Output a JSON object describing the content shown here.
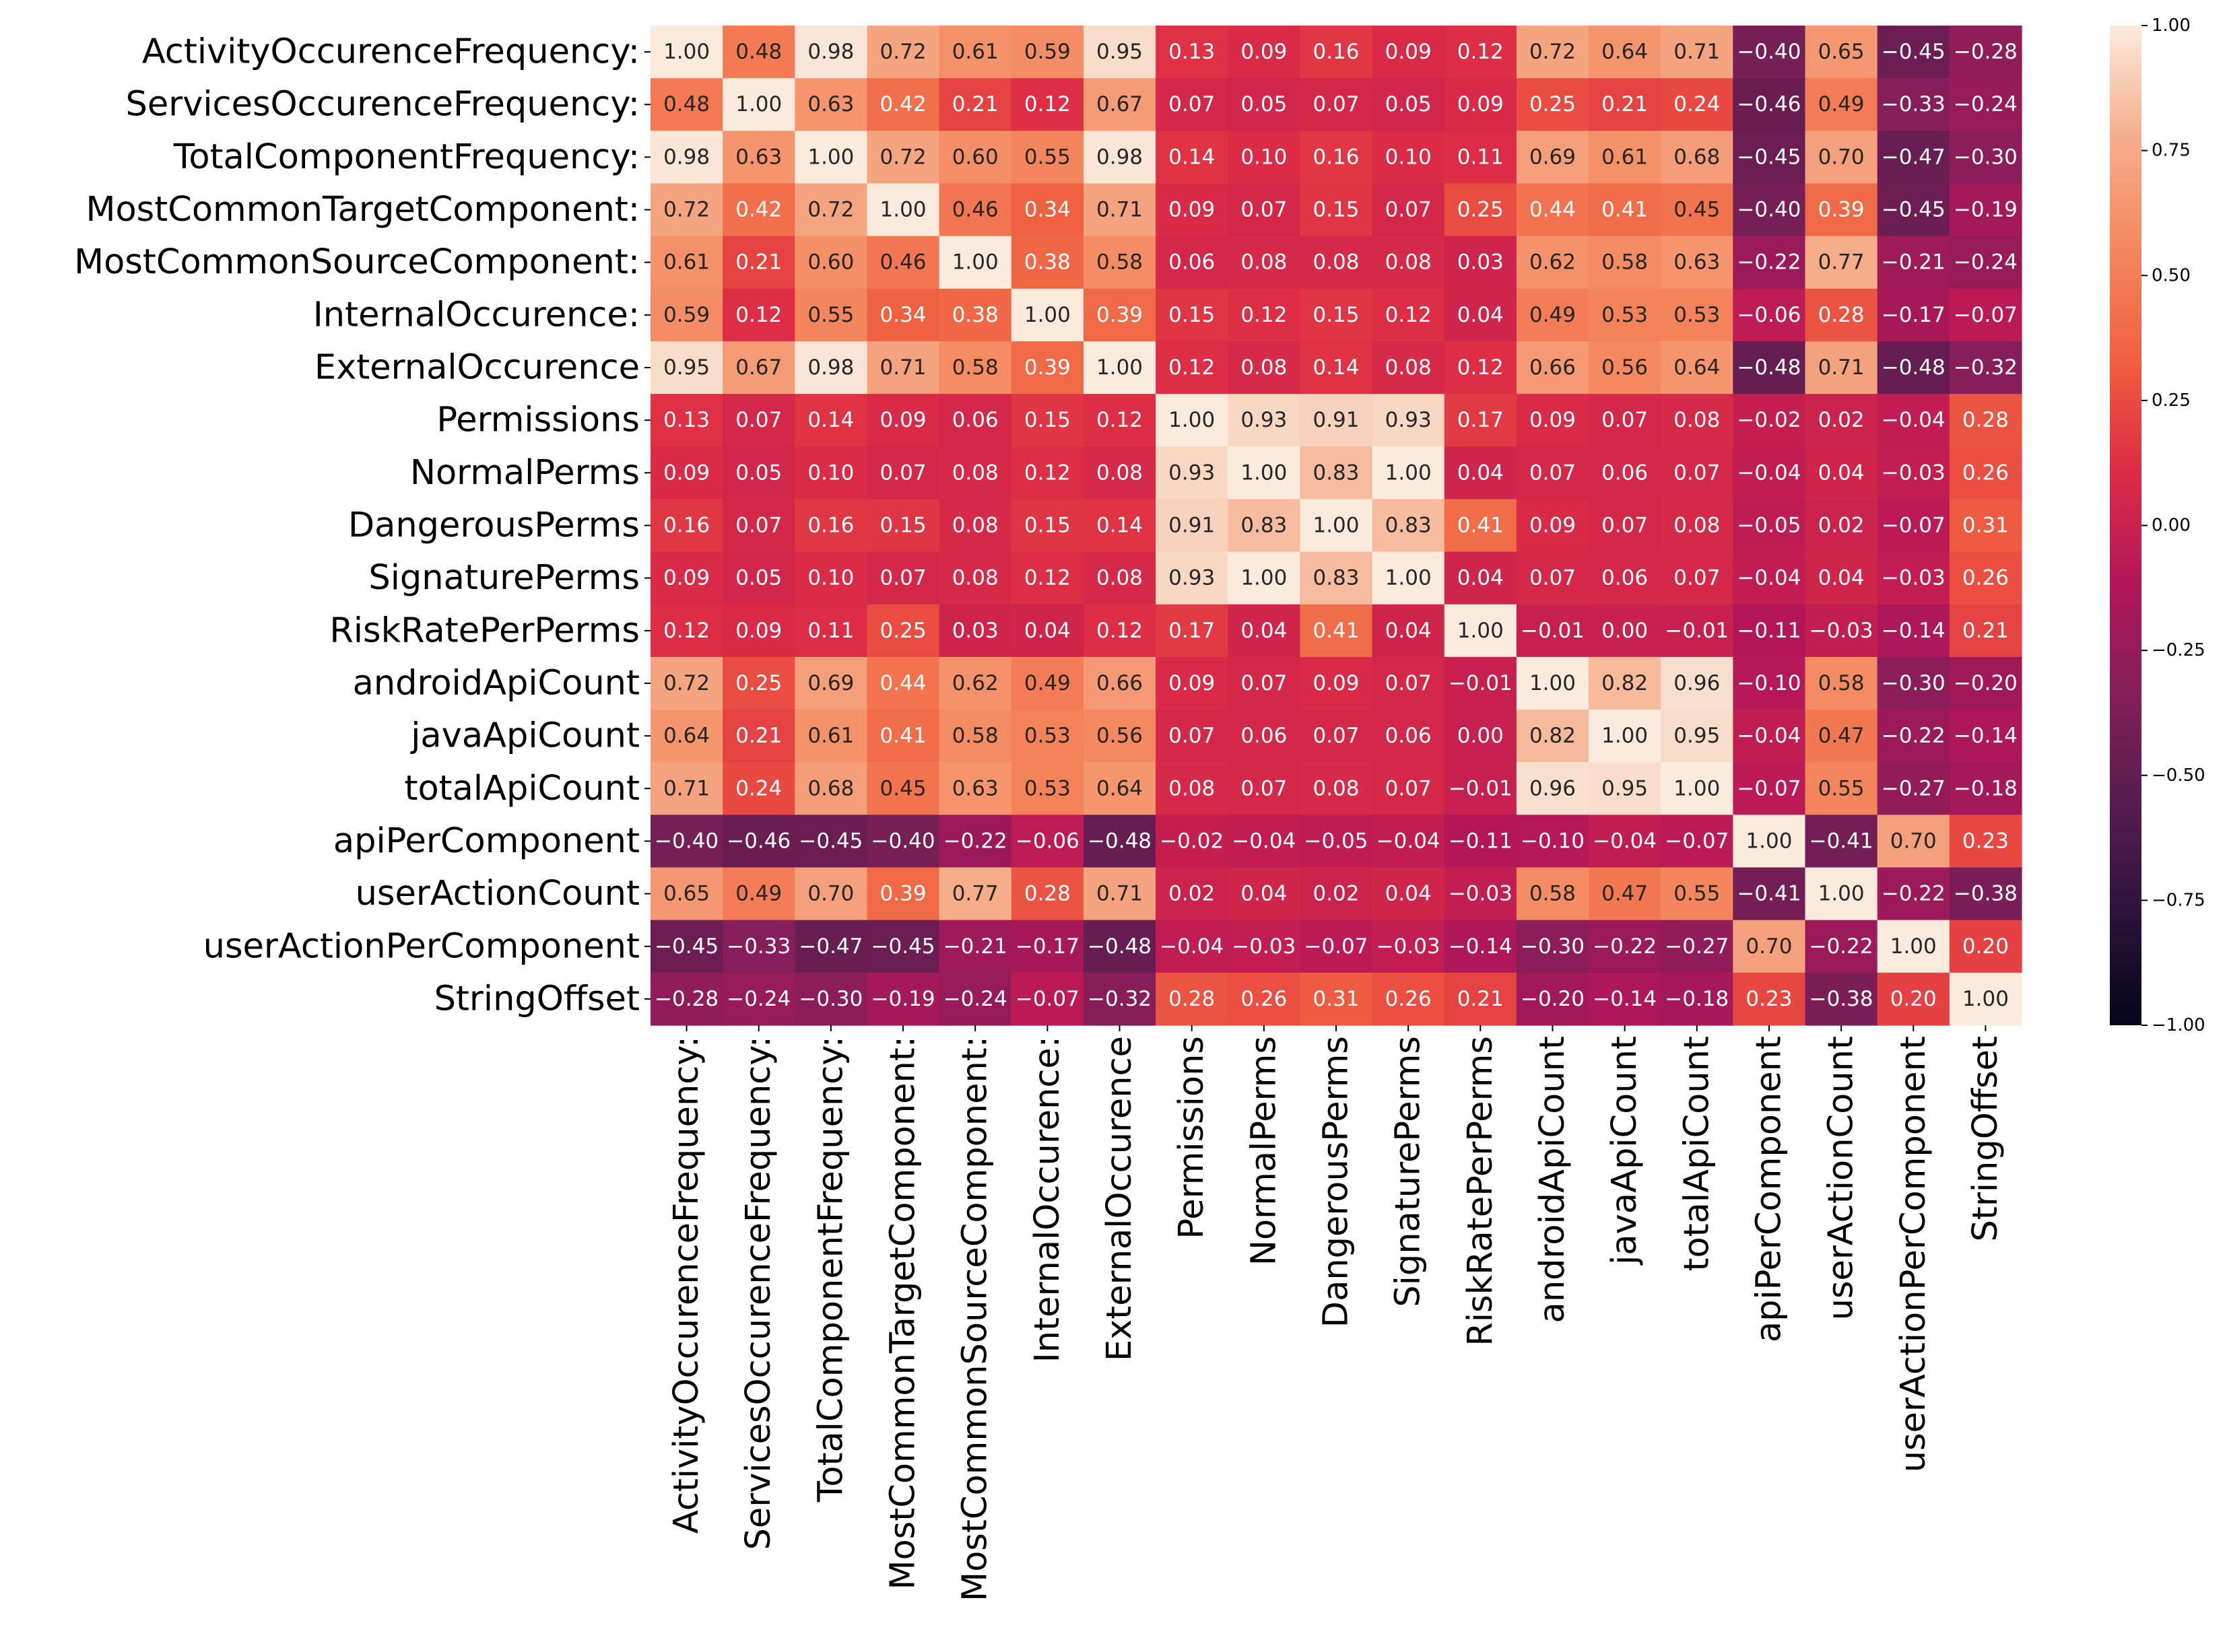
{
  "chart_data": {
    "type": "heatmap",
    "title": "",
    "xlabel": "",
    "ylabel": "",
    "row_labels": [
      "ActivityOccurenceFrequency:",
      "ServicesOccurenceFrequency:",
      "TotalComponentFrequency: ",
      "MostCommonTargetComponent: ",
      "MostCommonSourceComponent: ",
      "InternalOccurence:",
      "ExternalOccurence",
      "Permissions",
      "NormalPerms",
      "DangerousPerms",
      "SignaturePerms",
      "RiskRatePerPerms",
      "androidApiCount",
      "javaApiCount",
      "totalApiCount",
      "apiPerComponent",
      "userActionCount",
      "userActionPerComponent",
      "StringOffset"
    ],
    "col_labels": [
      "ActivityOccurenceFrequency:",
      "ServicesOccurenceFrequency:",
      "TotalComponentFrequency: ",
      "MostCommonTargetComponent: ",
      "MostCommonSourceComponent: ",
      "InternalOccurence:",
      "ExternalOccurence",
      "Permissions",
      "NormalPerms",
      "DangerousPerms",
      "SignaturePerms",
      "RiskRatePerPerms",
      "androidApiCount",
      "javaApiCount",
      "totalApiCount",
      "apiPerComponent",
      "userActionCount",
      "userActionPerComponent",
      "StringOffset"
    ],
    "values": [
      [
        1.0,
        0.48,
        0.98,
        0.72,
        0.61,
        0.59,
        0.95,
        0.13,
        0.09,
        0.16,
        0.09,
        0.12,
        0.72,
        0.64,
        0.71,
        -0.4,
        0.65,
        -0.45,
        -0.28
      ],
      [
        0.48,
        1.0,
        0.63,
        0.42,
        0.21,
        0.12,
        0.67,
        0.07,
        0.05,
        0.07,
        0.05,
        0.09,
        0.25,
        0.21,
        0.24,
        -0.46,
        0.49,
        -0.33,
        -0.24
      ],
      [
        0.98,
        0.63,
        1.0,
        0.72,
        0.6,
        0.55,
        0.98,
        0.14,
        0.1,
        0.16,
        0.1,
        0.11,
        0.69,
        0.61,
        0.68,
        -0.45,
        0.7,
        -0.47,
        -0.3
      ],
      [
        0.72,
        0.42,
        0.72,
        1.0,
        0.46,
        0.34,
        0.71,
        0.09,
        0.07,
        0.15,
        0.07,
        0.25,
        0.44,
        0.41,
        0.45,
        -0.4,
        0.39,
        -0.45,
        -0.19
      ],
      [
        0.61,
        0.21,
        0.6,
        0.46,
        1.0,
        0.38,
        0.58,
        0.06,
        0.08,
        0.08,
        0.08,
        0.03,
        0.62,
        0.58,
        0.63,
        -0.22,
        0.77,
        -0.21,
        -0.24
      ],
      [
        0.59,
        0.12,
        0.55,
        0.34,
        0.38,
        1.0,
        0.39,
        0.15,
        0.12,
        0.15,
        0.12,
        0.04,
        0.49,
        0.53,
        0.53,
        -0.06,
        0.28,
        -0.17,
        -0.07
      ],
      [
        0.95,
        0.67,
        0.98,
        0.71,
        0.58,
        0.39,
        1.0,
        0.12,
        0.08,
        0.14,
        0.08,
        0.12,
        0.66,
        0.56,
        0.64,
        -0.48,
        0.71,
        -0.48,
        -0.32
      ],
      [
        0.13,
        0.07,
        0.14,
        0.09,
        0.06,
        0.15,
        0.12,
        1.0,
        0.93,
        0.91,
        0.93,
        0.17,
        0.09,
        0.07,
        0.08,
        -0.02,
        0.02,
        -0.04,
        0.28
      ],
      [
        0.09,
        0.05,
        0.1,
        0.07,
        0.08,
        0.12,
        0.08,
        0.93,
        1.0,
        0.83,
        1.0,
        0.04,
        0.07,
        0.06,
        0.07,
        -0.04,
        0.04,
        -0.03,
        0.26
      ],
      [
        0.16,
        0.07,
        0.16,
        0.15,
        0.08,
        0.15,
        0.14,
        0.91,
        0.83,
        1.0,
        0.83,
        0.41,
        0.09,
        0.07,
        0.08,
        -0.05,
        0.02,
        -0.07,
        0.31
      ],
      [
        0.09,
        0.05,
        0.1,
        0.07,
        0.08,
        0.12,
        0.08,
        0.93,
        1.0,
        0.83,
        1.0,
        0.04,
        0.07,
        0.06,
        0.07,
        -0.04,
        0.04,
        -0.03,
        0.26
      ],
      [
        0.12,
        0.09,
        0.11,
        0.25,
        0.03,
        0.04,
        0.12,
        0.17,
        0.04,
        0.41,
        0.04,
        1.0,
        -0.01,
        -0.0,
        -0.01,
        -0.11,
        -0.03,
        -0.14,
        0.21
      ],
      [
        0.72,
        0.25,
        0.69,
        0.44,
        0.62,
        0.49,
        0.66,
        0.09,
        0.07,
        0.09,
        0.07,
        -0.01,
        1.0,
        0.82,
        0.96,
        -0.1,
        0.58,
        -0.3,
        -0.2
      ],
      [
        0.64,
        0.21,
        0.61,
        0.41,
        0.58,
        0.53,
        0.56,
        0.07,
        0.06,
        0.07,
        0.06,
        -0.0,
        0.82,
        1.0,
        0.95,
        -0.04,
        0.47,
        -0.22,
        -0.14
      ],
      [
        0.71,
        0.24,
        0.68,
        0.45,
        0.63,
        0.53,
        0.64,
        0.08,
        0.07,
        0.08,
        0.07,
        -0.01,
        0.96,
        0.95,
        1.0,
        -0.07,
        0.55,
        -0.27,
        -0.18
      ],
      [
        -0.4,
        -0.46,
        -0.45,
        -0.4,
        -0.22,
        -0.06,
        -0.48,
        -0.02,
        -0.04,
        -0.05,
        -0.04,
        -0.11,
        -0.1,
        -0.04,
        -0.07,
        1.0,
        -0.41,
        0.7,
        0.23
      ],
      [
        0.65,
        0.49,
        0.7,
        0.39,
        0.77,
        0.28,
        0.71,
        0.02,
        0.04,
        0.02,
        0.04,
        -0.03,
        0.58,
        0.47,
        0.55,
        -0.41,
        1.0,
        -0.22,
        -0.38
      ],
      [
        -0.45,
        -0.33,
        -0.47,
        -0.45,
        -0.21,
        -0.17,
        -0.48,
        -0.04,
        -0.03,
        -0.07,
        -0.03,
        -0.14,
        -0.3,
        -0.22,
        -0.27,
        0.7,
        -0.22,
        1.0,
        0.2
      ],
      [
        -0.28,
        -0.24,
        -0.3,
        -0.19,
        -0.24,
        -0.07,
        -0.32,
        0.28,
        0.26,
        0.31,
        0.26,
        0.21,
        -0.2,
        -0.14,
        -0.18,
        0.23,
        -0.38,
        0.2,
        1.0
      ]
    ],
    "value_format": "2 decimals, minus sign rendered as −",
    "vmin": -1.0,
    "vmax": 1.0,
    "colormap": "rocket",
    "colorbar_ticks": [
      1.0,
      0.75,
      0.5,
      0.25,
      0.0,
      -0.25,
      -0.5,
      -0.75,
      -1.0
    ],
    "colorbar_tick_labels": [
      "1.00",
      "0.75",
      "0.50",
      "0.25",
      "0.00",
      "−0.25",
      "−0.50",
      "−0.75",
      "−1.00"
    ],
    "colormap_stops": [
      "#03051a",
      "#2b1339",
      "#571d4e",
      "#841e5a",
      "#b41658",
      "#dd2c45",
      "#f0603f",
      "#f4875e",
      "#f6ae8c",
      "#faebdd"
    ]
  }
}
